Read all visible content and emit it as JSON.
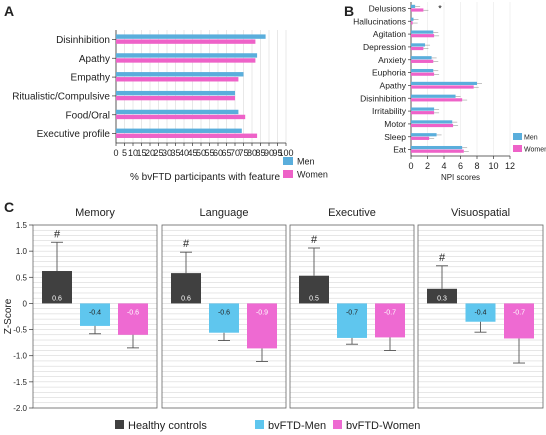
{
  "colors": {
    "men": "#5aaedc",
    "women": "#ee62c8",
    "healthy": "#404040",
    "bvftd_men": "#5fc6ee",
    "bvftd_women": "#ee6ad2"
  },
  "chart_data": [
    {
      "panel": "A",
      "type": "bar",
      "orientation": "horizontal",
      "categories": [
        "Disinhibition",
        "Apathy",
        "Empathy",
        "Ritualistic/Compulsive",
        "Food/Oral",
        "Executive profile"
      ],
      "series": [
        {
          "name": "Men",
          "values": [
            88,
            83,
            75,
            70,
            72,
            74
          ]
        },
        {
          "name": "Women",
          "values": [
            82,
            82,
            72,
            70,
            76,
            83
          ]
        }
      ],
      "xlabel": "% bvFTD participants with feature",
      "xlim": [
        0,
        100
      ],
      "xticks": [
        "0",
        "5",
        "10",
        "15",
        "20",
        "25",
        "30",
        "35",
        "40",
        "45",
        "50",
        "55",
        "60",
        "65",
        "70",
        "75",
        "80",
        "85",
        "90",
        "95",
        "100"
      ],
      "legend": "bottom-right"
    },
    {
      "panel": "B",
      "type": "bar",
      "orientation": "horizontal",
      "categories": [
        "Delusions",
        "Hallucinations",
        "Agitation",
        "Depression",
        "Anxiety",
        "Euphoria",
        "Apathy",
        "Disinhibition",
        "Irritability",
        "Motor",
        "Sleep",
        "Eat"
      ],
      "series": [
        {
          "name": "Men",
          "values": [
            0.5,
            0.3,
            2.7,
            1.7,
            2.5,
            2.7,
            8.0,
            5.4,
            2.8,
            5.0,
            3.1,
            6.2
          ]
        },
        {
          "name": "Women",
          "values": [
            1.5,
            0.2,
            2.8,
            1.5,
            2.7,
            2.8,
            7.6,
            6.2,
            2.8,
            5.1,
            2.2,
            6.4
          ]
        }
      ],
      "annotations": [
        "*"
      ],
      "xlabel": "NPI scores",
      "xlim": [
        0,
        12
      ],
      "xticks": [
        "0",
        "2",
        "4",
        "6",
        "8",
        "10",
        "12"
      ],
      "legend": "bottom-right"
    },
    {
      "panel": "C",
      "type": "bar",
      "ylabel": "Z-Score",
      "ylim": [
        -2.0,
        1.5
      ],
      "yticks": [
        "1.5",
        "1.0",
        "0.5",
        "0",
        "-0.5",
        "-1.0",
        "-1.5",
        "-2.0"
      ],
      "series_names": [
        "Healthy controls",
        "bvFTD-Men",
        "bvFTD-Women"
      ],
      "groups": [
        {
          "title": "Memory",
          "values": [
            0.62,
            -0.43,
            -0.6
          ],
          "labels": [
            "0.6",
            "-0.4",
            "-0.6"
          ],
          "errors": [
            0.55,
            0.15,
            0.25
          ],
          "marker": "#"
        },
        {
          "title": "Language",
          "values": [
            0.58,
            -0.56,
            -0.86
          ],
          "labels": [
            "0.6",
            "-0.6",
            "-0.9"
          ],
          "errors": [
            0.4,
            0.15,
            0.25
          ],
          "marker": "#"
        },
        {
          "title": "Executive",
          "values": [
            0.53,
            -0.66,
            -0.65
          ],
          "labels": [
            "0.5",
            "-0.7",
            "-0.7"
          ],
          "errors": [
            0.53,
            0.12,
            0.25
          ],
          "marker": "#"
        },
        {
          "title": "Visuospatial",
          "values": [
            0.28,
            -0.35,
            -0.67
          ],
          "labels": [
            "0.3",
            "-0.4",
            "-0.7"
          ],
          "errors": [
            0.44,
            0.2,
            0.47
          ],
          "marker": "#"
        }
      ],
      "legend": "bottom"
    }
  ]
}
